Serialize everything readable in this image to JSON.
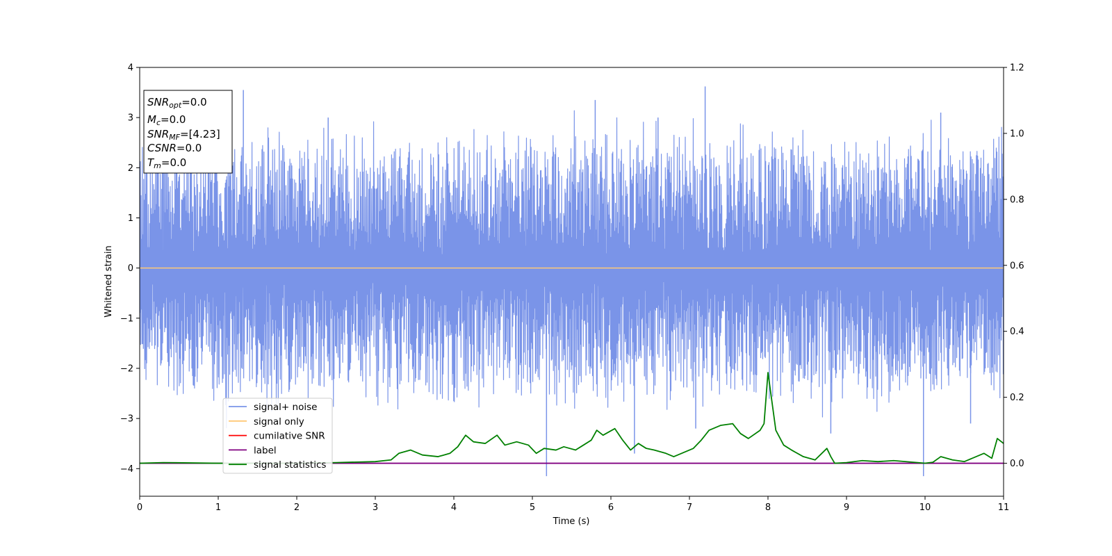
{
  "chart_data": {
    "type": "line",
    "xlabel": "Time (s)",
    "ylabel": "Whitened strain",
    "xlim": [
      0,
      11
    ],
    "ylim_left": [
      -4.55,
      4.0
    ],
    "ylim_right": [
      -0.1,
      1.2
    ],
    "x_ticks": [
      0,
      1,
      2,
      3,
      4,
      5,
      6,
      7,
      8,
      9,
      10,
      11
    ],
    "y_ticks_left": [
      4,
      3,
      2,
      1,
      0,
      -1,
      -2,
      -3,
      -4
    ],
    "y_tick_labels_left": [
      "4",
      "3",
      "2",
      "1",
      "0",
      "−1",
      "−2",
      "−3",
      "−4"
    ],
    "y_ticks_right": [
      1.2,
      1.0,
      0.8,
      0.6,
      0.4,
      0.2,
      0.0
    ],
    "y_tick_labels_right": [
      "1.2",
      "1.0",
      "0.8",
      "0.6",
      "0.4",
      "0.2",
      "0.0"
    ],
    "legend_position": "lower-left",
    "info_box": {
      "position": "top-left",
      "lines": [
        {
          "name": "SNR",
          "sub": "opt",
          "value": "=0.0"
        },
        {
          "name": "M",
          "sub": "c",
          "value": "=0.0"
        },
        {
          "name": "SNR",
          "sub": "MF",
          "value": "=[4.23]"
        },
        {
          "name": "CSNR",
          "sub": "",
          "value": "=0.0"
        },
        {
          "name": "T",
          "sub": "m",
          "value": "=0.0"
        }
      ]
    },
    "series": [
      {
        "name": "signal+ noise",
        "axis": "left",
        "color": "#7a94e8",
        "style": "dense noise trace",
        "band_min": -2.0,
        "band_max": 2.0,
        "spike_up": [
          [
            1.32,
            3.55
          ],
          [
            5.8,
            3.35
          ],
          [
            7.2,
            3.62
          ],
          [
            0.3,
            3.0
          ],
          [
            2.4,
            3.0
          ],
          [
            6.6,
            3.0
          ],
          [
            10.2,
            3.1
          ],
          [
            11.0,
            2.7
          ]
        ],
        "spike_down": [
          [
            5.18,
            -4.15
          ],
          [
            9.98,
            -4.15
          ],
          [
            6.3,
            -3.7
          ],
          [
            7.08,
            -3.2
          ],
          [
            10.58,
            -3.1
          ],
          [
            8.8,
            -3.3
          ]
        ]
      },
      {
        "name": "signal only",
        "axis": "left",
        "color": "#ffc875",
        "x": [
          0,
          11
        ],
        "y": [
          0,
          0
        ]
      },
      {
        "name": "cumilative SNR",
        "axis": "right",
        "color": "#ff0000",
        "x": [],
        "y": []
      },
      {
        "name": "label",
        "axis": "right",
        "color": "#800080",
        "x": [
          0,
          11
        ],
        "y": [
          0.0,
          0.0
        ]
      },
      {
        "name": "signal statistics",
        "axis": "right",
        "color": "#008000",
        "x": [
          0,
          0.3,
          1.0,
          1.5,
          2.0,
          2.5,
          3.0,
          3.2,
          3.3,
          3.45,
          3.6,
          3.8,
          3.95,
          4.05,
          4.15,
          4.25,
          4.4,
          4.55,
          4.65,
          4.8,
          4.95,
          5.05,
          5.15,
          5.3,
          5.4,
          5.55,
          5.65,
          5.75,
          5.82,
          5.9,
          6.05,
          6.15,
          6.25,
          6.35,
          6.45,
          6.55,
          6.7,
          6.8,
          6.95,
          7.05,
          7.15,
          7.25,
          7.4,
          7.55,
          7.65,
          7.75,
          7.9,
          7.95,
          8.0,
          8.1,
          8.2,
          8.3,
          8.45,
          8.6,
          8.75,
          8.8,
          8.85,
          9.0,
          9.2,
          9.4,
          9.6,
          9.8,
          10.0,
          10.1,
          10.2,
          10.35,
          10.5,
          10.65,
          10.75,
          10.85,
          10.92,
          11.0
        ],
        "y": [
          0.0,
          0.002,
          0.0,
          0.0,
          0.0,
          0.002,
          0.005,
          0.01,
          0.03,
          0.04,
          0.025,
          0.02,
          0.03,
          0.05,
          0.085,
          0.065,
          0.06,
          0.085,
          0.055,
          0.065,
          0.055,
          0.03,
          0.045,
          0.04,
          0.05,
          0.04,
          0.055,
          0.07,
          0.1,
          0.085,
          0.105,
          0.07,
          0.04,
          0.06,
          0.045,
          0.04,
          0.03,
          0.02,
          0.035,
          0.045,
          0.07,
          0.1,
          0.115,
          0.12,
          0.09,
          0.075,
          0.1,
          0.12,
          0.275,
          0.1,
          0.055,
          0.04,
          0.02,
          0.01,
          0.045,
          0.02,
          0.0,
          0.002,
          0.008,
          0.005,
          0.008,
          0.004,
          0.0,
          0.003,
          0.02,
          0.01,
          0.005,
          0.02,
          0.03,
          0.015,
          0.075,
          0.06
        ]
      }
    ]
  }
}
